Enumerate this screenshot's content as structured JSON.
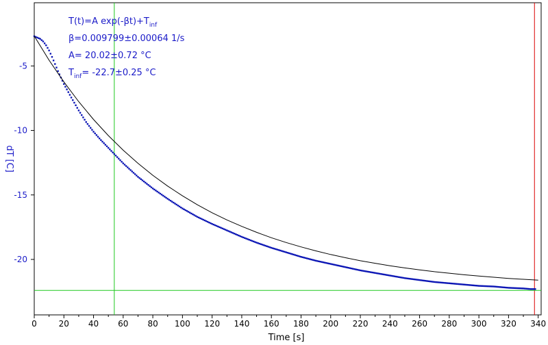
{
  "chart_data": {
    "type": "scatter",
    "xlabel": "Time [s]",
    "ylabel": "dT [C]",
    "xlim": [
      0,
      342
    ],
    "ylim": [
      -24.3,
      -0.1
    ],
    "xticks": [
      "0",
      "20",
      "40",
      "60",
      "80",
      "100",
      "120",
      "140",
      "160",
      "180",
      "200",
      "220",
      "240",
      "260",
      "280",
      "300",
      "320",
      "340"
    ],
    "yticks": [
      "-5",
      "-10",
      "-15",
      "-20"
    ],
    "annotations": {
      "formula": "T(t)=A exp(-βt)+T",
      "formula_sub": "inf",
      "beta": "β=0.009799±0.00064 1/s",
      "amp": "A= 20.02±0.72 °C",
      "tinf_prefix": "T",
      "tinf_sub": "inf",
      "tinf_value": "= -22.7±0.25 °C"
    },
    "series": [
      {
        "style": "measured",
        "color": "#0a14b4",
        "x": [
          0,
          2,
          4,
          6,
          8,
          10,
          12,
          14,
          16,
          18,
          20,
          25,
          30,
          35,
          40,
          45,
          50,
          55,
          60,
          70,
          80,
          90,
          100,
          110,
          120,
          130,
          140,
          150,
          160,
          170,
          180,
          190,
          200,
          210,
          220,
          230,
          240,
          250,
          260,
          270,
          280,
          290,
          300,
          310,
          320,
          330,
          335,
          338
        ],
        "y": [
          -2.7,
          -2.8,
          -2.9,
          -3.1,
          -3.4,
          -3.8,
          -4.3,
          -4.85,
          -5.4,
          -5.9,
          -6.4,
          -7.45,
          -8.45,
          -9.35,
          -10.1,
          -10.75,
          -11.35,
          -11.95,
          -12.55,
          -13.6,
          -14.5,
          -15.3,
          -16.05,
          -16.7,
          -17.25,
          -17.75,
          -18.25,
          -18.7,
          -19.1,
          -19.45,
          -19.8,
          -20.1,
          -20.35,
          -20.6,
          -20.85,
          -21.05,
          -21.25,
          -21.45,
          -21.6,
          -21.75,
          -21.85,
          -21.95,
          -22.05,
          -22.1,
          -22.2,
          -22.25,
          -22.3,
          -22.3
        ]
      },
      {
        "style": "fit",
        "color": "#000000",
        "x": [
          0,
          10,
          20,
          30,
          40,
          50,
          60,
          70,
          80,
          90,
          100,
          110,
          120,
          130,
          140,
          150,
          160,
          170,
          180,
          190,
          200,
          210,
          220,
          230,
          240,
          250,
          260,
          270,
          280,
          290,
          300,
          310,
          320,
          330,
          340
        ],
        "y": [
          -2.68,
          -4.55,
          -6.24,
          -7.77,
          -9.15,
          -10.4,
          -11.53,
          -12.55,
          -13.48,
          -14.31,
          -15.07,
          -15.76,
          -16.38,
          -16.94,
          -17.44,
          -17.9,
          -18.32,
          -18.69,
          -19.03,
          -19.34,
          -19.62,
          -19.87,
          -20.1,
          -20.3,
          -20.49,
          -20.66,
          -20.81,
          -20.95,
          -21.07,
          -21.19,
          -21.29,
          -21.38,
          -21.47,
          -21.54,
          -21.61
        ]
      }
    ],
    "reference_lines": [
      {
        "orientation": "vertical",
        "value": 54,
        "color": "#1ec81e"
      },
      {
        "orientation": "vertical",
        "value": 337.5,
        "color": "#dc0000"
      },
      {
        "orientation": "horizontal",
        "value": -22.4,
        "color": "#1ec81e"
      }
    ]
  }
}
